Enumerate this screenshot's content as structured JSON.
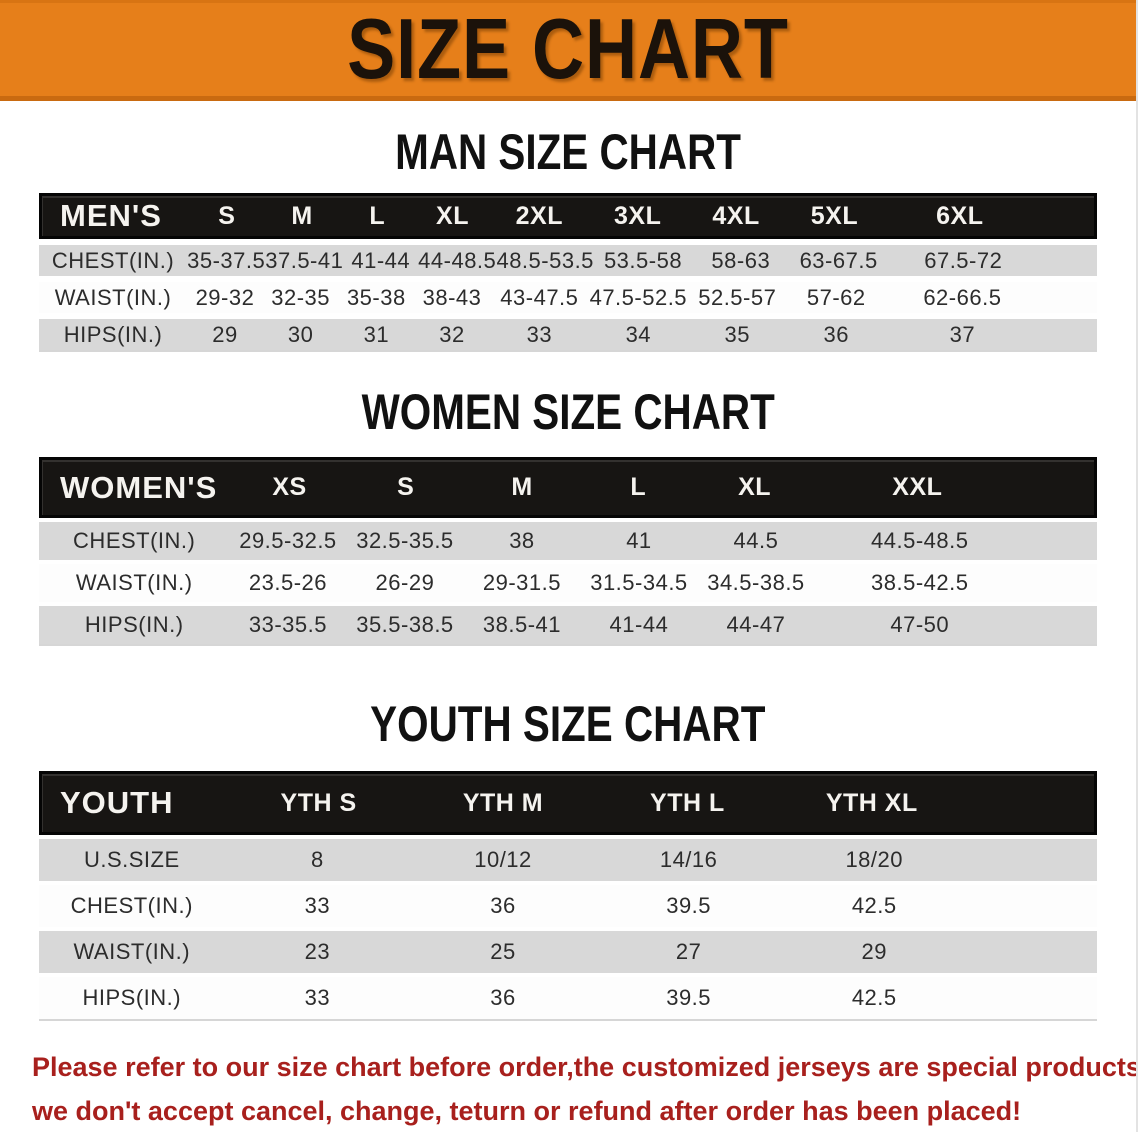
{
  "banner": {
    "title": "SIZE CHART"
  },
  "colors": {
    "banner_bg": "#e67f1a",
    "header_bg": "#171513",
    "row_gray": "#d8d8d8",
    "footer_red": "#a8201d"
  },
  "sections": [
    {
      "heading": "MAN SIZE CHART",
      "group_label": "MEN'S",
      "columns": [
        "S",
        "M",
        "L",
        "XL",
        "2XL",
        "3XL",
        "4XL",
        "5XL",
        "6XL"
      ],
      "rows": [
        {
          "label": "CHEST(IN.)",
          "values": [
            "35-37.5",
            "37.5-41",
            "41-44",
            "44-48.5",
            "48.5-53.5",
            "53.5-58",
            "58-63",
            "63-67.5",
            "67.5-72"
          ]
        },
        {
          "label": "WAIST(IN.)",
          "values": [
            "29-32",
            "32-35",
            "35-38",
            "38-43",
            "43-47.5",
            "47.5-52.5",
            "52.5-57",
            "57-62",
            "62-66.5"
          ]
        },
        {
          "label": "HIPS(IN.)",
          "values": [
            "29",
            "30",
            "31",
            "32",
            "33",
            "34",
            "35",
            "36",
            "37"
          ]
        }
      ]
    },
    {
      "heading": "WOMEN SIZE CHART",
      "group_label": "WOMEN'S",
      "columns": [
        "XS",
        "S",
        "M",
        "L",
        "XL",
        "XXL"
      ],
      "rows": [
        {
          "label": "CHEST(IN.)",
          "values": [
            "29.5-32.5",
            "32.5-35.5",
            "38",
            "41",
            "44.5",
            "44.5-48.5"
          ]
        },
        {
          "label": "WAIST(IN.)",
          "values": [
            "23.5-26",
            "26-29",
            "29-31.5",
            "31.5-34.5",
            "34.5-38.5",
            "38.5-42.5"
          ]
        },
        {
          "label": "HIPS(IN.)",
          "values": [
            "33-35.5",
            "35.5-38.5",
            "38.5-41",
            "41-44",
            "44-47",
            "47-50"
          ]
        }
      ]
    },
    {
      "heading": "YOUTH SIZE CHART",
      "group_label": "YOUTH",
      "columns": [
        "YTH S",
        "YTH M",
        "YTH L",
        "YTH XL"
      ],
      "rows": [
        {
          "label": "U.S.SIZE",
          "values": [
            "8",
            "10/12",
            "14/16",
            "18/20"
          ]
        },
        {
          "label": "CHEST(IN.)",
          "values": [
            "33",
            "36",
            "39.5",
            "42.5"
          ]
        },
        {
          "label": "WAIST(IN.)",
          "values": [
            "23",
            "25",
            "27",
            "29"
          ]
        },
        {
          "label": "HIPS(IN.)",
          "values": [
            "33",
            "36",
            "39.5",
            "42.5"
          ]
        }
      ]
    }
  ],
  "footer": {
    "line1": "Please refer to our size chart before order,the customized jerseys are special products,",
    "line2": "we don't accept cancel, change, teturn or refund after order has been placed!"
  }
}
